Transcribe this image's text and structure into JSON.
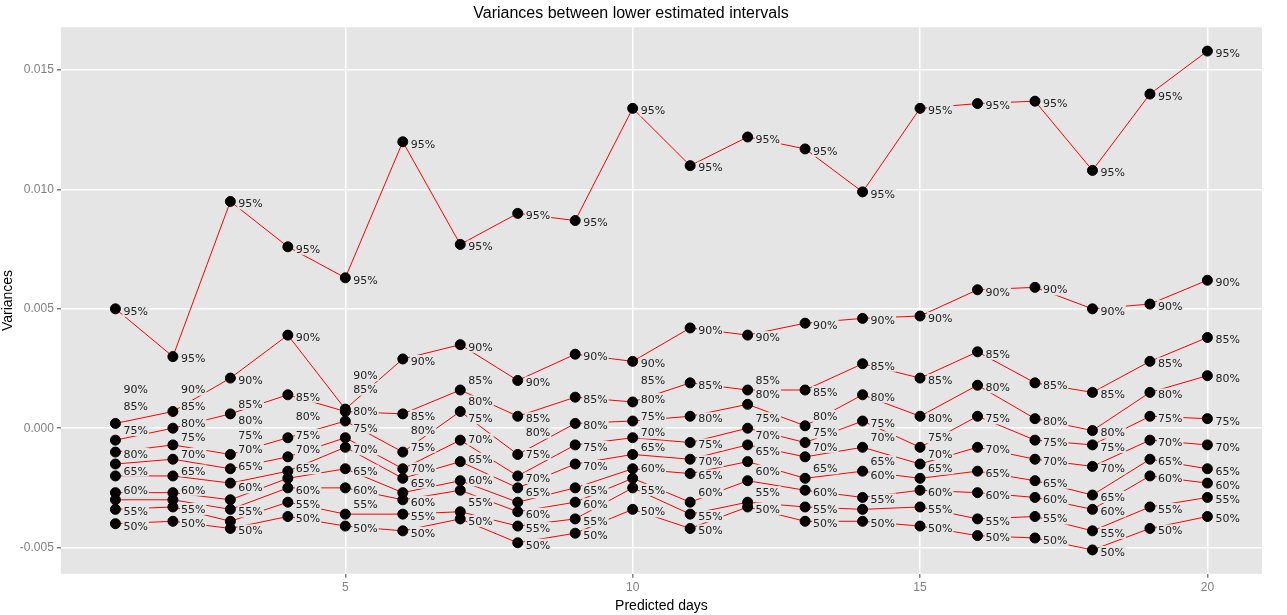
{
  "chart_data": {
    "type": "line",
    "title": "Variances between lower estimated intervals",
    "xlabel": "Predicted days",
    "ylabel": "Variances",
    "x": [
      1,
      2,
      3,
      4,
      5,
      6,
      7,
      8,
      9,
      10,
      11,
      12,
      13,
      14,
      15,
      16,
      17,
      18,
      19,
      20
    ],
    "series": [
      {
        "name": "50%",
        "color": "#ff0000",
        "values": [
          -0.004,
          -0.0039,
          -0.0042,
          -0.0037,
          -0.0041,
          -0.0043,
          -0.0038,
          -0.0048,
          -0.0044,
          -0.0034,
          -0.0042,
          -0.0033,
          -0.0039,
          -0.0039,
          -0.0041,
          -0.0045,
          -0.0046,
          -0.0051,
          -0.0042,
          -0.0037
        ]
      },
      {
        "name": "55%",
        "color": "#ff0000",
        "values": [
          -0.0034,
          -0.0033,
          -0.0039,
          -0.0031,
          -0.0036,
          -0.0036,
          -0.0035,
          -0.0041,
          -0.0038,
          -0.0025,
          -0.0036,
          -0.0031,
          -0.0033,
          -0.0034,
          -0.0033,
          -0.0038,
          -0.0037,
          -0.0043,
          -0.0033,
          -0.0029
        ]
      },
      {
        "name": "60%",
        "color": "#ff0000",
        "values": [
          -0.003,
          -0.003,
          -0.0034,
          -0.0025,
          -0.0025,
          -0.003,
          -0.0026,
          -0.0035,
          -0.0031,
          -0.0021,
          -0.0031,
          -0.0022,
          -0.0026,
          -0.0029,
          -0.0026,
          -0.0027,
          -0.0029,
          -0.0034,
          -0.002,
          -0.0023
        ]
      },
      {
        "name": "65%",
        "color": "#ff0000",
        "values": [
          -0.0027,
          -0.0027,
          -0.003,
          -0.0021,
          -0.0017,
          -0.0027,
          -0.0022,
          -0.0031,
          -0.0025,
          -0.0017,
          -0.0019,
          -0.0014,
          -0.0021,
          -0.0018,
          -0.0021,
          -0.0018,
          -0.0022,
          -0.0028,
          -0.0013,
          -0.0017
        ]
      },
      {
        "name": "70%",
        "color": "#ff0000",
        "values": [
          -0.002,
          -0.002,
          -0.0023,
          -0.0018,
          -0.0008,
          -0.0021,
          -0.0014,
          -0.0025,
          -0.0015,
          -0.0011,
          -0.0013,
          -0.0007,
          -0.0012,
          -0.0008,
          -0.0015,
          -0.0008,
          -0.0013,
          -0.0016,
          -0.0005,
          -0.0007
        ]
      },
      {
        "name": "75%",
        "color": "#ff0000",
        "values": [
          -0.0015,
          -0.0013,
          -0.0017,
          -0.0012,
          -0.0004,
          -0.0017,
          -0.0005,
          -0.002,
          -0.0007,
          -0.0004,
          -0.0006,
          0.0,
          -0.0006,
          0.0003,
          -0.0008,
          0.0005,
          -0.0005,
          -0.0007,
          0.0005,
          0.0004
        ]
      },
      {
        "name": "80%",
        "color": "#ff0000",
        "values": [
          -0.001,
          -0.0007,
          -0.0011,
          -0.0004,
          0.0003,
          -0.001,
          0.0007,
          -0.0011,
          0.0002,
          0.0003,
          0.0005,
          0.001,
          0.0001,
          0.0014,
          0.0005,
          0.0018,
          0.0004,
          -0.0001,
          0.0015,
          0.0022
        ]
      },
      {
        "name": "85%",
        "color": "#ff0000",
        "values": [
          -0.0005,
          0.0,
          0.0006,
          0.0014,
          0.0007,
          0.0006,
          0.0016,
          0.0005,
          0.0013,
          0.0011,
          0.0019,
          0.0016,
          0.0016,
          0.0027,
          0.0021,
          0.0032,
          0.0019,
          0.0015,
          0.0028,
          0.0038
        ]
      },
      {
        "name": "90%",
        "color": "#ff0000",
        "values": [
          0.0002,
          0.0007,
          0.0021,
          0.0039,
          0.0008,
          0.0029,
          0.0035,
          0.002,
          0.0031,
          0.0028,
          0.0042,
          0.0039,
          0.0044,
          0.0046,
          0.0047,
          0.0058,
          0.0059,
          0.005,
          0.0052,
          0.0062
        ]
      },
      {
        "name": "95%",
        "color": "#ff0000",
        "values": [
          0.005,
          0.003,
          0.0095,
          0.0076,
          0.0063,
          0.012,
          0.0077,
          0.009,
          0.0087,
          0.0134,
          0.011,
          0.0122,
          0.0117,
          0.0099,
          0.0134,
          0.0136,
          0.0137,
          0.0108,
          0.014,
          0.0158
        ]
      }
    ],
    "xlim": [
      0.05,
      20.95
    ],
    "xticks": [
      5,
      10,
      15,
      20
    ],
    "ylim": [
      -0.0061,
      0.0168
    ],
    "yticks": [
      {
        "value": -0.005,
        "label": "-0.005"
      },
      {
        "value": 0,
        "label": "0.000"
      },
      {
        "value": 0.005,
        "label": "0.005"
      },
      {
        "value": 0.01,
        "label": "0.010"
      },
      {
        "value": 0.015,
        "label": "0.015"
      }
    ],
    "grid": true,
    "legend": false,
    "marker": "circle",
    "line_style": "solid"
  }
}
